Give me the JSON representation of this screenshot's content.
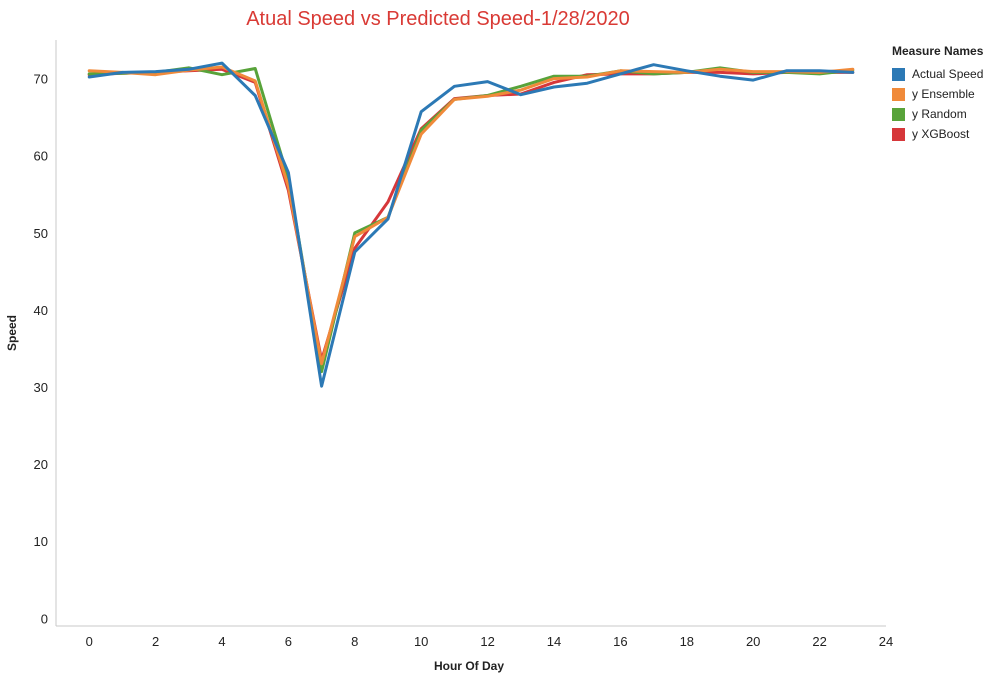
{
  "chart_data": {
    "type": "line",
    "title": "Atual Speed vs Predicted Speed-1/28/2020",
    "xlabel": "Hour Of Day",
    "ylabel": "Speed",
    "xlim": [
      -1,
      24
    ],
    "ylim": [
      -1,
      75
    ],
    "xticks": [
      0,
      2,
      4,
      6,
      8,
      10,
      12,
      14,
      16,
      18,
      20,
      22,
      24
    ],
    "yticks": [
      0,
      10,
      20,
      30,
      40,
      50,
      60,
      70
    ],
    "x": [
      0,
      1,
      2,
      3,
      4,
      5,
      6,
      7,
      8,
      9,
      10,
      11,
      12,
      13,
      14,
      15,
      16,
      17,
      18,
      19,
      20,
      21,
      22,
      23
    ],
    "legend_title": "Measure Names",
    "legend_position": "top-right",
    "grid": false,
    "series": [
      {
        "name": "Actual Speed",
        "color": "#2c79b5",
        "values": [
          70.2,
          70.8,
          70.9,
          71.2,
          72.0,
          67.8,
          57.8,
          30.1,
          47.5,
          51.8,
          65.7,
          69.0,
          69.6,
          67.9,
          68.9,
          69.4,
          70.6,
          71.8,
          71.0,
          70.3,
          69.8,
          71.0,
          71.0,
          70.8
        ]
      },
      {
        "name": "y Ensemble",
        "color": "#f08a3a",
        "values": [
          71.0,
          70.8,
          70.5,
          71.1,
          71.5,
          69.7,
          56.0,
          33.0,
          49.5,
          52.0,
          62.8,
          67.3,
          67.7,
          68.5,
          70.0,
          70.2,
          71.0,
          70.9,
          70.8,
          71.2,
          70.9,
          70.9,
          70.8,
          71.2
        ]
      },
      {
        "name": "y Random",
        "color": "#58a33a",
        "values": [
          70.6,
          70.7,
          70.8,
          71.4,
          70.5,
          71.3,
          57.0,
          32.0,
          50.0,
          52.0,
          63.3,
          67.3,
          67.8,
          69.0,
          70.3,
          70.3,
          71.0,
          70.6,
          70.8,
          71.4,
          70.8,
          70.8,
          70.6,
          71.1
        ]
      },
      {
        "name": "y XGBoost",
        "color": "#d6373a",
        "values": [
          70.5,
          70.7,
          70.8,
          71.0,
          71.2,
          69.5,
          55.5,
          33.5,
          48.0,
          54.0,
          63.5,
          67.4,
          67.8,
          68.0,
          69.5,
          70.5,
          70.6,
          70.6,
          70.8,
          70.8,
          70.6,
          70.8,
          70.8,
          70.8
        ]
      }
    ]
  }
}
